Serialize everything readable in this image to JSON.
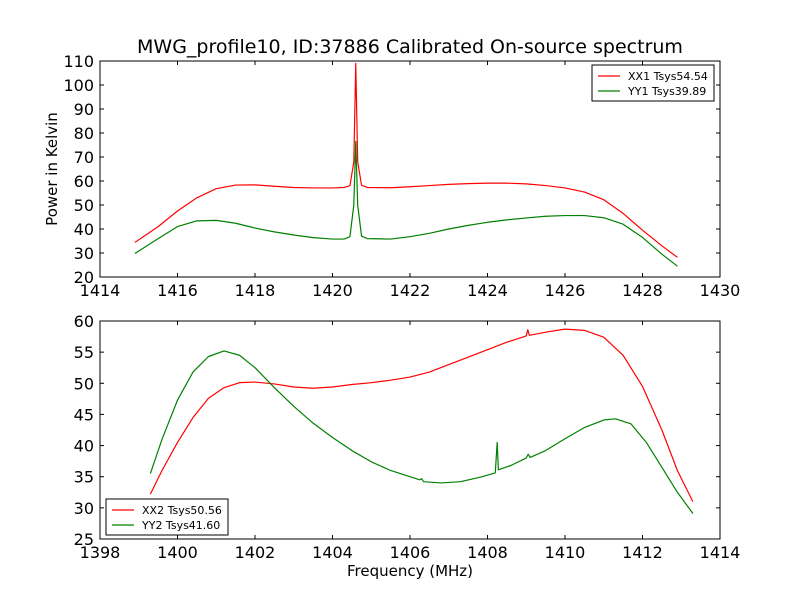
{
  "title": "MWG_profile10, ID:37886 Calibrated On-source spectrum",
  "colors": {
    "xx": "#ff0000",
    "yy": "#008000"
  },
  "chart_data": [
    {
      "type": "line",
      "xlabel": "",
      "ylabel": "Power in Kelvin",
      "xlim": [
        1414,
        1430
      ],
      "ylim": [
        20,
        110
      ],
      "xticks": [
        1414,
        1416,
        1418,
        1420,
        1422,
        1424,
        1426,
        1428,
        1430
      ],
      "yticks": [
        20,
        30,
        40,
        50,
        60,
        70,
        80,
        90,
        100,
        110
      ],
      "legend_position": "top-right",
      "grid": false,
      "series": [
        {
          "name": "XX1 Tsys54.54",
          "color": "#ff0000",
          "points": [
            [
              1414.9,
              34.4
            ],
            [
              1415.5,
              41
            ],
            [
              1416,
              47.5
            ],
            [
              1416.5,
              53
            ],
            [
              1417,
              56.8
            ],
            [
              1417.5,
              58.3
            ],
            [
              1418,
              58.4
            ],
            [
              1418.5,
              57.8
            ],
            [
              1419,
              57.3
            ],
            [
              1419.5,
              57.1
            ],
            [
              1420,
              57.1
            ],
            [
              1420.3,
              57.3
            ],
            [
              1420.45,
              58
            ],
            [
              1420.55,
              68
            ],
            [
              1420.6,
              109
            ],
            [
              1420.65,
              68
            ],
            [
              1420.75,
              58.2
            ],
            [
              1420.9,
              57.3
            ],
            [
              1421.5,
              57.2
            ],
            [
              1422,
              57.6
            ],
            [
              1422.5,
              58.1
            ],
            [
              1423,
              58.6
            ],
            [
              1423.5,
              58.9
            ],
            [
              1424,
              59.1
            ],
            [
              1424.5,
              59.1
            ],
            [
              1425,
              58.8
            ],
            [
              1425.5,
              58.1
            ],
            [
              1426,
              57.1
            ],
            [
              1426.5,
              55.4
            ],
            [
              1427,
              52.2
            ],
            [
              1427.5,
              46.5
            ],
            [
              1428,
              39.5
            ],
            [
              1428.5,
              33
            ],
            [
              1428.9,
              28.2
            ]
          ]
        },
        {
          "name": "YY1 Tsys39.89",
          "color": "#008000",
          "points": [
            [
              1414.9,
              29.8
            ],
            [
              1415.5,
              36
            ],
            [
              1416,
              41
            ],
            [
              1416.5,
              43.4
            ],
            [
              1417,
              43.6
            ],
            [
              1417.5,
              42.4
            ],
            [
              1418,
              40.4
            ],
            [
              1418.5,
              38.8
            ],
            [
              1419,
              37.5
            ],
            [
              1419.5,
              36.4
            ],
            [
              1420,
              35.8
            ],
            [
              1420.3,
              35.8
            ],
            [
              1420.45,
              36.8
            ],
            [
              1420.55,
              50
            ],
            [
              1420.6,
              76.5
            ],
            [
              1420.65,
              50
            ],
            [
              1420.75,
              37
            ],
            [
              1420.9,
              36
            ],
            [
              1421.5,
              35.8
            ],
            [
              1422,
              36.8
            ],
            [
              1422.5,
              38.2
            ],
            [
              1423,
              40
            ],
            [
              1423.5,
              41.5
            ],
            [
              1424,
              42.8
            ],
            [
              1424.5,
              43.8
            ],
            [
              1425,
              44.6
            ],
            [
              1425.5,
              45.3
            ],
            [
              1426,
              45.6
            ],
            [
              1426.5,
              45.6
            ],
            [
              1427,
              44.7
            ],
            [
              1427.5,
              42
            ],
            [
              1428,
              36.5
            ],
            [
              1428.5,
              29.5
            ],
            [
              1428.9,
              24.5
            ]
          ]
        }
      ]
    },
    {
      "type": "line",
      "xlabel": "Frequency (MHz)",
      "ylabel": "",
      "xlim": [
        1398,
        1414
      ],
      "ylim": [
        25,
        60
      ],
      "xticks": [
        1398,
        1400,
        1402,
        1404,
        1406,
        1408,
        1410,
        1412,
        1414
      ],
      "yticks": [
        25,
        30,
        35,
        40,
        45,
        50,
        55,
        60
      ],
      "legend_position": "bottom-left",
      "grid": false,
      "series": [
        {
          "name": "XX2 Tsys50.56",
          "color": "#ff0000",
          "points": [
            [
              1399.3,
              32.2
            ],
            [
              1399.6,
              36
            ],
            [
              1400,
              40.5
            ],
            [
              1400.4,
              44.5
            ],
            [
              1400.8,
              47.6
            ],
            [
              1401.2,
              49.3
            ],
            [
              1401.6,
              50.1
            ],
            [
              1402,
              50.2
            ],
            [
              1402.5,
              49.9
            ],
            [
              1403,
              49.4
            ],
            [
              1403.5,
              49.2
            ],
            [
              1404,
              49.4
            ],
            [
              1404.5,
              49.8
            ],
            [
              1405,
              50.1
            ],
            [
              1405.5,
              50.5
            ],
            [
              1406,
              51
            ],
            [
              1406.5,
              51.8
            ],
            [
              1407,
              53
            ],
            [
              1407.5,
              54.2
            ],
            [
              1408,
              55.4
            ],
            [
              1408.5,
              56.6
            ],
            [
              1409,
              57.6
            ],
            [
              1409.04,
              58.6
            ],
            [
              1409.08,
              57.7
            ],
            [
              1409.5,
              58.2
            ],
            [
              1410,
              58.7
            ],
            [
              1410.5,
              58.5
            ],
            [
              1411,
              57.4
            ],
            [
              1411.5,
              54.5
            ],
            [
              1412,
              49.5
            ],
            [
              1412.5,
              42.5
            ],
            [
              1412.9,
              36
            ],
            [
              1413.3,
              31
            ]
          ]
        },
        {
          "name": "YY2 Tsys41.60",
          "color": "#008000",
          "points": [
            [
              1399.3,
              35.5
            ],
            [
              1399.6,
              41
            ],
            [
              1400,
              47.3
            ],
            [
              1400.4,
              51.8
            ],
            [
              1400.8,
              54.3
            ],
            [
              1401.2,
              55.2
            ],
            [
              1401.6,
              54.5
            ],
            [
              1402,
              52.5
            ],
            [
              1402.5,
              49.3
            ],
            [
              1403,
              46.3
            ],
            [
              1403.5,
              43.6
            ],
            [
              1404,
              41.3
            ],
            [
              1404.5,
              39.2
            ],
            [
              1405,
              37.4
            ],
            [
              1405.5,
              36
            ],
            [
              1406,
              35
            ],
            [
              1406.25,
              34.5
            ],
            [
              1406.3,
              34.7
            ],
            [
              1406.35,
              34.2
            ],
            [
              1406.8,
              34
            ],
            [
              1407.3,
              34.2
            ],
            [
              1407.8,
              34.9
            ],
            [
              1408.2,
              35.6
            ],
            [
              1408.25,
              40.5
            ],
            [
              1408.28,
              36.1
            ],
            [
              1408.6,
              36.8
            ],
            [
              1409,
              38
            ],
            [
              1409.05,
              38.6
            ],
            [
              1409.1,
              38.1
            ],
            [
              1409.5,
              39.2
            ],
            [
              1410,
              41.1
            ],
            [
              1410.5,
              42.9
            ],
            [
              1411,
              44.1
            ],
            [
              1411.3,
              44.3
            ],
            [
              1411.7,
              43.5
            ],
            [
              1412.1,
              40.5
            ],
            [
              1412.5,
              36.5
            ],
            [
              1412.9,
              32.5
            ],
            [
              1413.3,
              29.1
            ]
          ]
        }
      ]
    }
  ]
}
